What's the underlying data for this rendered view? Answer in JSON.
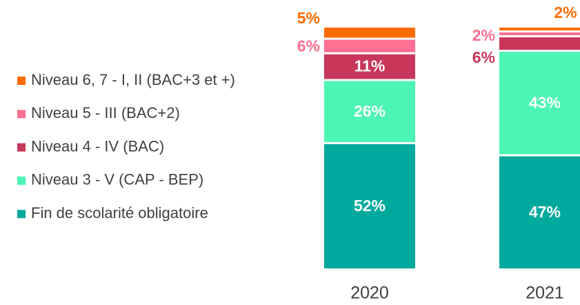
{
  "chart_data": {
    "type": "stacked_bar",
    "categories": [
      "2020",
      "2021"
    ],
    "ylim": [
      0,
      100
    ],
    "series": [
      {
        "name": "Fin de scolarité obligatoire",
        "color": "#00a99d",
        "values": [
          52,
          47
        ],
        "value_labels": [
          "52%",
          "47%"
        ]
      },
      {
        "name": "Niveau 3 - V (CAP - BEP)",
        "color": "#4cf5b3",
        "values": [
          26,
          43
        ],
        "value_labels": [
          "26%",
          "43%"
        ]
      },
      {
        "name": "Niveau 4 - IV (BAC)",
        "color": "#c8375a",
        "values": [
          11,
          6
        ],
        "value_labels": [
          "11%",
          "6%"
        ]
      },
      {
        "name": "Niveau 5 - III (BAC+2)",
        "color": "#ff6f91",
        "values": [
          6,
          2
        ],
        "value_labels": [
          "6%",
          "2%"
        ]
      },
      {
        "name": "Niveau 6, 7 - I, II (BAC+3 et +)",
        "color": "#ff6b00",
        "values": [
          5,
          2
        ],
        "value_labels": [
          "5%",
          "2%"
        ]
      }
    ]
  }
}
